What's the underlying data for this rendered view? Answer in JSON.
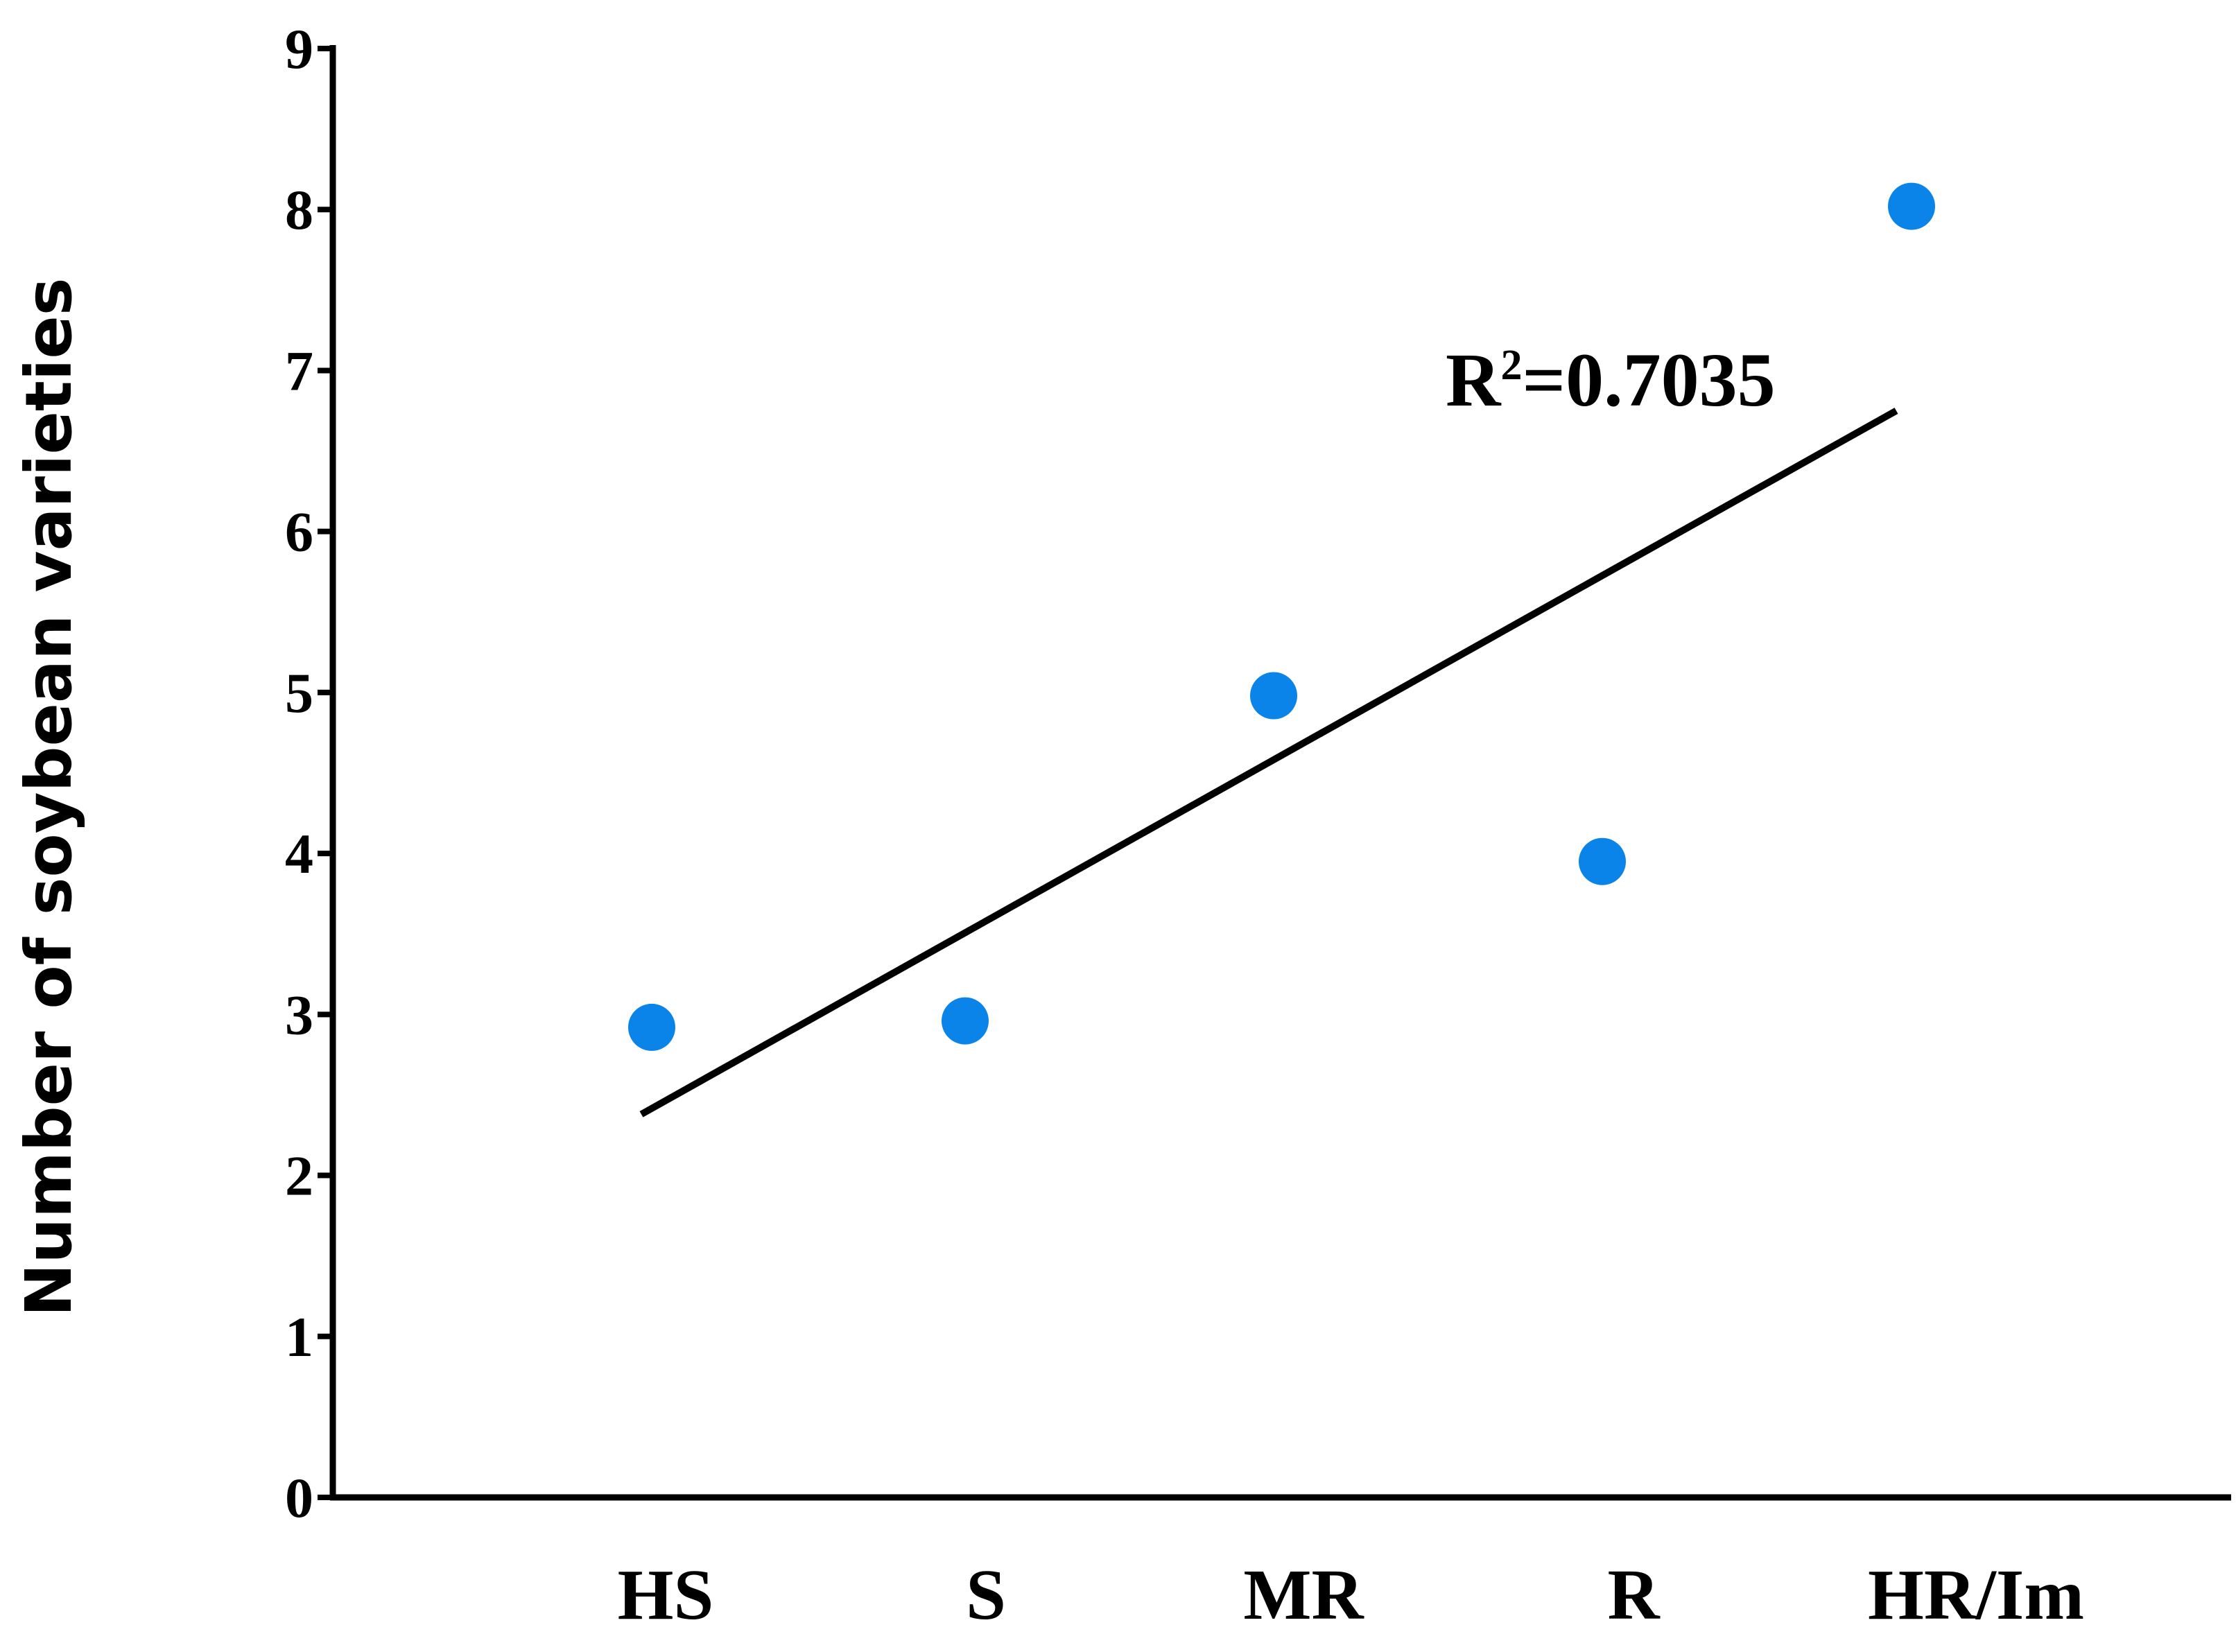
{
  "chart_data": {
    "type": "scatter",
    "categories": [
      "HS",
      "S",
      "MR",
      "R",
      "HR/Im"
    ],
    "values": [
      2.92,
      2.96,
      4.98,
      3.95,
      8.02
    ],
    "ylabel": "Number of soybean varieties",
    "xlabel": "",
    "title": "",
    "ylim": [
      0,
      9
    ],
    "yticks": [
      0,
      1,
      2,
      3,
      4,
      5,
      6,
      7,
      8,
      9
    ],
    "grid": false,
    "trendline": {
      "start": 2.38,
      "end": 6.75
    },
    "annotation": {
      "base": "R",
      "sup": "2",
      "text": "=0.7035"
    },
    "point_color": "#0a84e8",
    "line_color": "#000000"
  }
}
